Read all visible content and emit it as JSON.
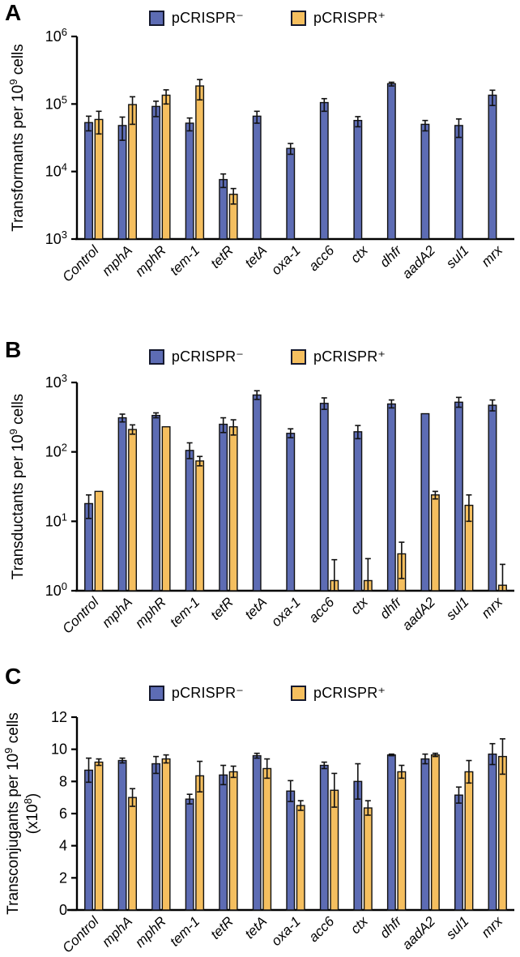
{
  "figure_title": "",
  "legend": {
    "neg_label": "pCRISPR⁻",
    "pos_label": "pCRISPR⁺",
    "neg_color": "#5D6CB4",
    "pos_color": "#F5BF5F"
  },
  "colors": {
    "bar_blue": "#5D6CB4",
    "bar_orange": "#F5BF5F",
    "outline": "#111111",
    "axis": "#000000"
  },
  "chart_data": [
    {
      "panel": "A",
      "type": "bar",
      "yscale": "log",
      "ylim": [
        1000,
        1000000
      ],
      "yticks": [
        {
          "v": 1000,
          "label": "10^3"
        },
        {
          "v": 10000,
          "label": "10^4"
        },
        {
          "v": 100000,
          "label": "10^5"
        },
        {
          "v": 1000000,
          "label": "10^6"
        }
      ],
      "ylabel_lines": [
        [
          {
            "t": "Transformants per 10"
          },
          {
            "t": "9",
            "sup": true
          },
          {
            "t": " cells"
          }
        ]
      ],
      "categories": [
        "Control",
        "mphA",
        "mphR",
        "tem-1",
        "tetR",
        "tetA",
        "oxa-1",
        "acc6",
        "ctx",
        "dhfr",
        "aadA2",
        "sul1",
        "mrx"
      ],
      "series": [
        {
          "name": "pCRISPR⁻",
          "color": "#5D6CB4",
          "values": [
            53000,
            48000,
            92000,
            52000,
            7600,
            66000,
            22000,
            105000,
            57000,
            200000,
            50000,
            48000,
            135000
          ],
          "err_hi": [
            66000,
            64000,
            110000,
            62000,
            9200,
            78000,
            26000,
            120000,
            65000,
            210000,
            57000,
            60000,
            160000
          ],
          "err_lo": [
            40000,
            29000,
            65000,
            40000,
            5800,
            52000,
            18000,
            78000,
            46000,
            185000,
            40000,
            32000,
            95000
          ]
        },
        {
          "name": "pCRISPR⁺",
          "color": "#F5BF5F",
          "values": [
            59000,
            98000,
            135000,
            185000,
            4600,
            null,
            null,
            null,
            null,
            null,
            null,
            null,
            null
          ],
          "err_hi": [
            78000,
            128000,
            162000,
            230000,
            5600,
            null,
            null,
            null,
            null,
            null,
            null,
            null,
            null
          ],
          "err_lo": [
            36000,
            50000,
            100000,
            115000,
            3300,
            null,
            null,
            null,
            null,
            null,
            null,
            null,
            null
          ]
        }
      ]
    },
    {
      "panel": "B",
      "type": "bar",
      "yscale": "log",
      "ylim": [
        1,
        1000
      ],
      "yticks": [
        {
          "v": 1,
          "label": "10^0"
        },
        {
          "v": 10,
          "label": "10^1"
        },
        {
          "v": 100,
          "label": "10^2"
        },
        {
          "v": 1000,
          "label": "10^3"
        }
      ],
      "ylabel_lines": [
        [
          {
            "t": "Transductants per 10"
          },
          {
            "t": "9",
            "sup": true
          },
          {
            "t": " cells"
          }
        ]
      ],
      "categories": [
        "Control",
        "mphA",
        "mphR",
        "tem-1",
        "tetR",
        "tetA",
        "oxa-1",
        "acc6",
        "ctx",
        "dhfr",
        "aadA2",
        "sul1",
        "mrx"
      ],
      "series": [
        {
          "name": "pCRISPR⁻",
          "color": "#5D6CB4",
          "values": [
            18,
            310,
            335,
            105,
            250,
            660,
            185,
            500,
            195,
            490,
            355,
            520,
            470
          ],
          "err_hi": [
            24,
            350,
            365,
            135,
            310,
            760,
            215,
            600,
            240,
            560,
            null,
            610,
            560
          ],
          "err_lo": [
            11,
            270,
            310,
            80,
            190,
            570,
            160,
            410,
            155,
            430,
            null,
            440,
            390
          ]
        },
        {
          "name": "pCRISPR⁺",
          "color": "#F5BF5F",
          "values": [
            27,
            210,
            230,
            74,
            230,
            null,
            null,
            1.4,
            1.4,
            3.4,
            24,
            17,
            1.2
          ],
          "err_hi": [
            null,
            245,
            null,
            86,
            290,
            null,
            null,
            2.8,
            2.9,
            5.0,
            27,
            24,
            2.4
          ],
          "err_lo": [
            null,
            180,
            null,
            63,
            175,
            null,
            null,
            1.0,
            1.0,
            1.5,
            21,
            10,
            1.0
          ]
        }
      ]
    },
    {
      "panel": "C",
      "type": "bar",
      "yscale": "linear",
      "ylim": [
        0,
        12
      ],
      "yticks": [
        {
          "v": 0,
          "label": "0"
        },
        {
          "v": 2,
          "label": "2"
        },
        {
          "v": 4,
          "label": "4"
        },
        {
          "v": 6,
          "label": "6"
        },
        {
          "v": 8,
          "label": "8"
        },
        {
          "v": 10,
          "label": "10"
        },
        {
          "v": 12,
          "label": "12"
        }
      ],
      "ylabel_lines": [
        [
          {
            "t": "Transconjugants per 10"
          },
          {
            "t": "9",
            "sup": true
          },
          {
            "t": " cells"
          }
        ],
        [
          {
            "t": "(x10"
          },
          {
            "t": "8",
            "sup": true
          },
          {
            "t": ")"
          }
        ]
      ],
      "categories": [
        "Control",
        "mphA",
        "mphR",
        "tem-1",
        "tetR",
        "tetA",
        "oxa-1",
        "acc6",
        "ctx",
        "dhfr",
        "aadA2",
        "sul1",
        "mrx"
      ],
      "series": [
        {
          "name": "pCRISPR⁻",
          "color": "#5D6CB4",
          "values": [
            8.7,
            9.3,
            9.1,
            6.9,
            8.4,
            9.6,
            7.4,
            9.0,
            8.0,
            9.65,
            9.4,
            7.15,
            9.7
          ],
          "err_hi": [
            9.45,
            9.45,
            9.55,
            7.2,
            9.0,
            9.75,
            8.05,
            9.2,
            9.1,
            9.7,
            9.7,
            7.65,
            10.35
          ],
          "err_lo": [
            7.95,
            9.15,
            8.5,
            6.6,
            7.8,
            9.45,
            6.75,
            8.8,
            6.9,
            9.6,
            9.1,
            6.65,
            9.05
          ]
        },
        {
          "name": "pCRISPR⁺",
          "color": "#F5BF5F",
          "values": [
            9.2,
            7.0,
            9.4,
            8.35,
            8.6,
            8.8,
            6.5,
            7.45,
            6.35,
            8.6,
            9.65,
            8.6,
            9.55
          ],
          "err_hi": [
            9.4,
            7.55,
            9.65,
            9.25,
            8.95,
            9.4,
            6.8,
            8.5,
            6.8,
            9.0,
            9.75,
            9.3,
            10.65
          ],
          "err_lo": [
            9.0,
            6.45,
            9.15,
            7.35,
            8.25,
            8.2,
            6.2,
            6.4,
            5.9,
            8.2,
            9.55,
            7.9,
            8.45
          ]
        }
      ]
    }
  ]
}
